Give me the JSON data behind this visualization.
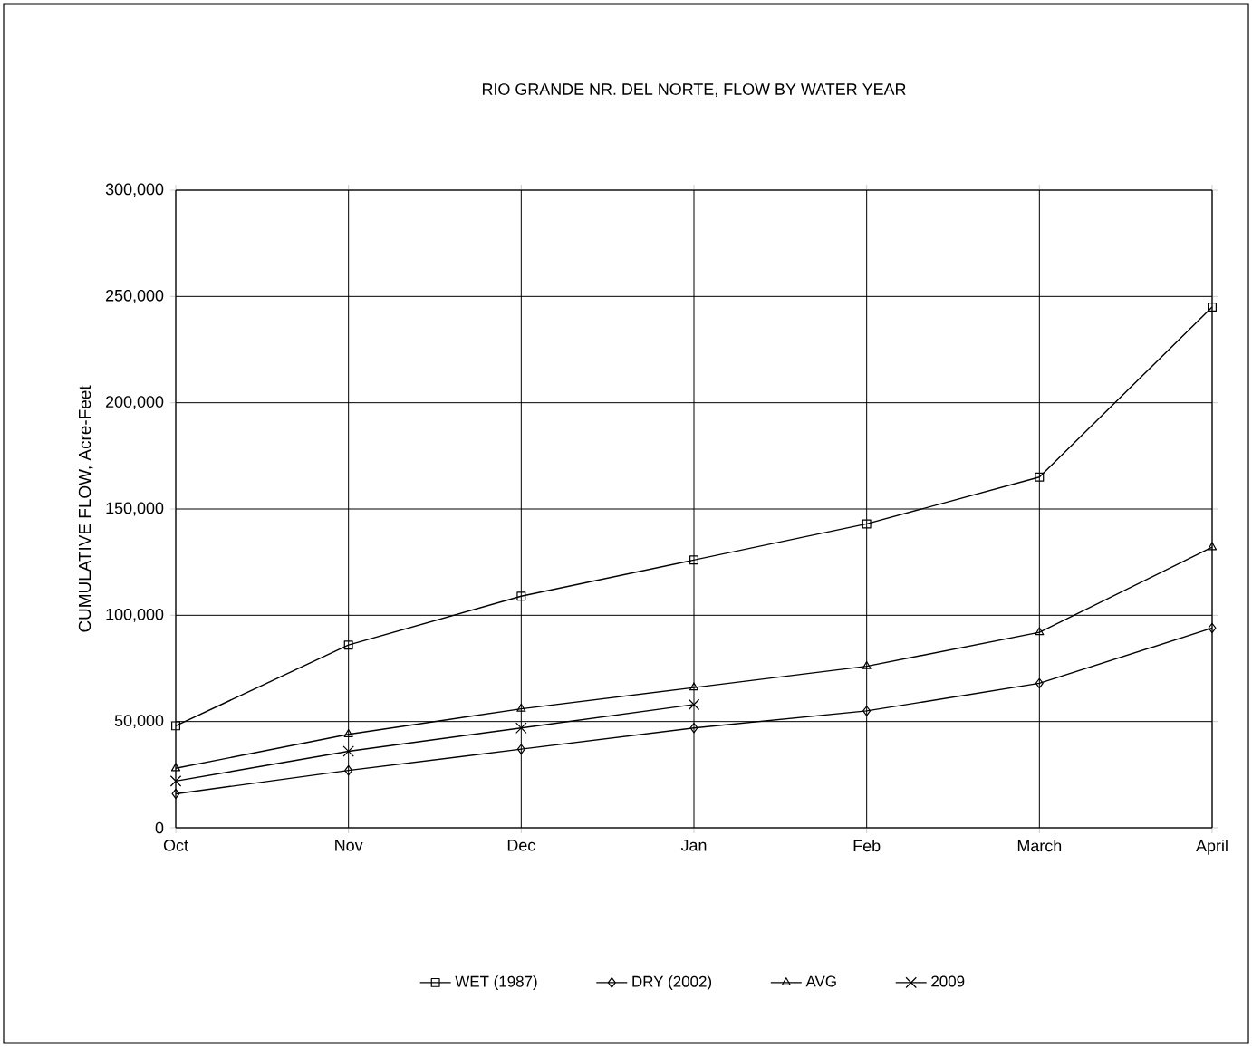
{
  "chart_data": {
    "type": "line",
    "title": "RIO GRANDE NR. DEL NORTE, FLOW BY WATER YEAR",
    "ylabel": "CUMULATIVE FLOW, Acre-Feet",
    "categories": [
      "Oct",
      "Nov",
      "Dec",
      "Jan",
      "Feb",
      "March",
      "April"
    ],
    "series": [
      {
        "name": "WET (1987)",
        "color": "#000000",
        "marker": "square",
        "values": [
          48000,
          86000,
          109000,
          126000,
          143000,
          165000,
          245000
        ]
      },
      {
        "name": "DRY (2002)",
        "color": "#000000",
        "marker": "diamond",
        "values": [
          16000,
          27000,
          37000,
          47000,
          55000,
          68000,
          94000
        ]
      },
      {
        "name": "AVG",
        "color": "#000000",
        "marker": "triangle",
        "values": [
          28000,
          44000,
          56000,
          66000,
          76000,
          92000,
          132000
        ]
      },
      {
        "name": "2009",
        "color": "#000000",
        "marker": "cross",
        "values": [
          22000,
          36000,
          47000,
          58000,
          null,
          null,
          null
        ]
      }
    ],
    "ylim": [
      0,
      300000
    ],
    "yticks": [
      {
        "value": 0,
        "label": "0"
      },
      {
        "value": 50000,
        "label": "50,000"
      },
      {
        "value": 100000,
        "label": "100,000"
      },
      {
        "value": 150000,
        "label": "150,000"
      },
      {
        "value": 200000,
        "label": "200,000"
      },
      {
        "value": 250000,
        "label": "250,000"
      },
      {
        "value": 300000,
        "label": "300,000"
      }
    ],
    "grid": true,
    "legend": "bottom",
    "line_style": "solid"
  }
}
